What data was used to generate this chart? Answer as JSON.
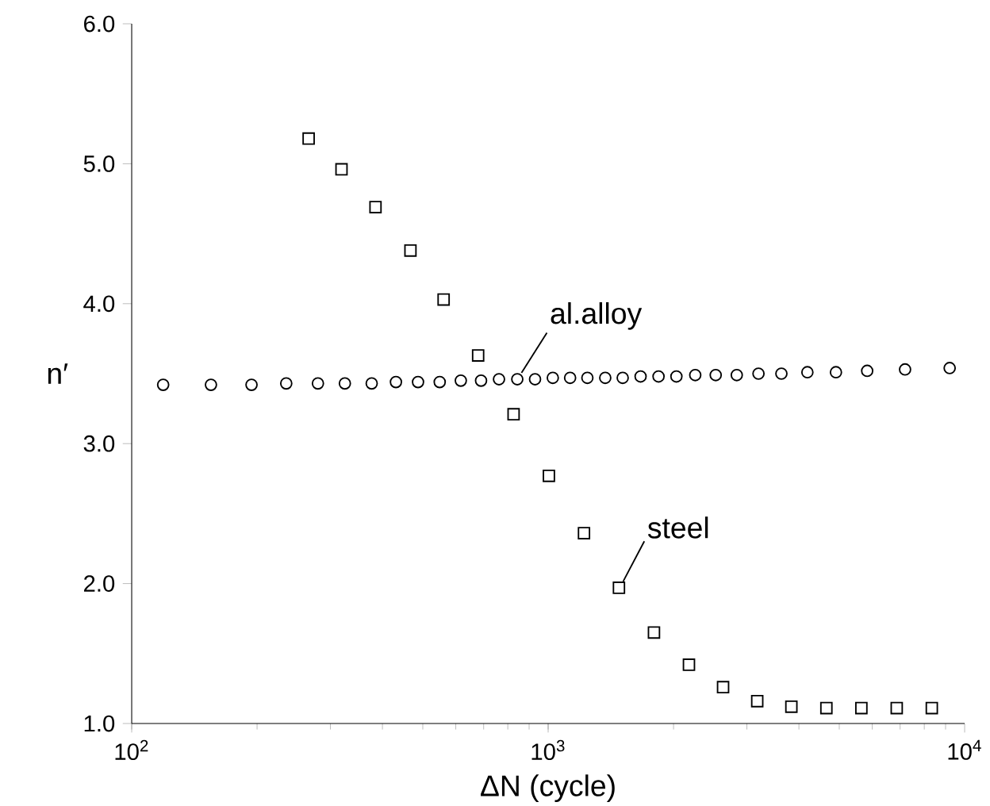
{
  "chart_data": {
    "type": "scatter",
    "xlabel": "ΔN (cycle)",
    "ylabel": "n′",
    "log": "x",
    "xlim": [
      100,
      10000
    ],
    "ylim": [
      1.0,
      6.0
    ],
    "xticks": [
      {
        "value": 100,
        "label": "10$^{2}$"
      },
      {
        "value": 1000,
        "label": "10$^{3}$"
      },
      {
        "value": 10000,
        "label": "10$^{4}$"
      }
    ],
    "yticks": [
      {
        "value": 1,
        "label": "1.0"
      },
      {
        "value": 2,
        "label": "2.0"
      },
      {
        "value": 3,
        "label": "3.0"
      },
      {
        "value": 4,
        "label": "4.0"
      },
      {
        "value": 5,
        "label": "5.0"
      },
      {
        "value": 6,
        "label": "6.0"
      }
    ],
    "grid": false,
    "series": [
      {
        "name": "al.alloy",
        "color": "#000000",
        "marker": "circle",
        "x": [
          119,
          155,
          194,
          235,
          280,
          325,
          377,
          431,
          487,
          549,
          617,
          690,
          762,
          843,
          930,
          1026,
          1129,
          1242,
          1371,
          1510,
          1667,
          1841,
          2032,
          2255,
          2525,
          2837,
          3199,
          3631,
          4192,
          4909,
          5834,
          7194,
          9205
        ],
        "values": [
          3.42,
          3.42,
          3.42,
          3.43,
          3.43,
          3.43,
          3.43,
          3.44,
          3.44,
          3.44,
          3.45,
          3.45,
          3.46,
          3.46,
          3.46,
          3.47,
          3.47,
          3.47,
          3.47,
          3.47,
          3.48,
          3.48,
          3.48,
          3.49,
          3.49,
          3.49,
          3.5,
          3.5,
          3.51,
          3.51,
          3.52,
          3.53,
          3.54
        ]
      },
      {
        "name": "steel",
        "color": "#000000",
        "marker": "square",
        "x": [
          266,
          319,
          385,
          467,
          561,
          679,
          826,
          1004,
          1219,
          1479,
          1795,
          2178,
          2630,
          3177,
          3837,
          4656,
          5650,
          6870,
          8340
        ],
        "values": [
          5.18,
          4.96,
          4.69,
          4.38,
          4.03,
          3.63,
          3.21,
          2.77,
          2.36,
          1.97,
          1.65,
          1.42,
          1.26,
          1.16,
          1.12,
          1.11,
          1.11,
          1.11,
          1.11
        ]
      }
    ]
  }
}
